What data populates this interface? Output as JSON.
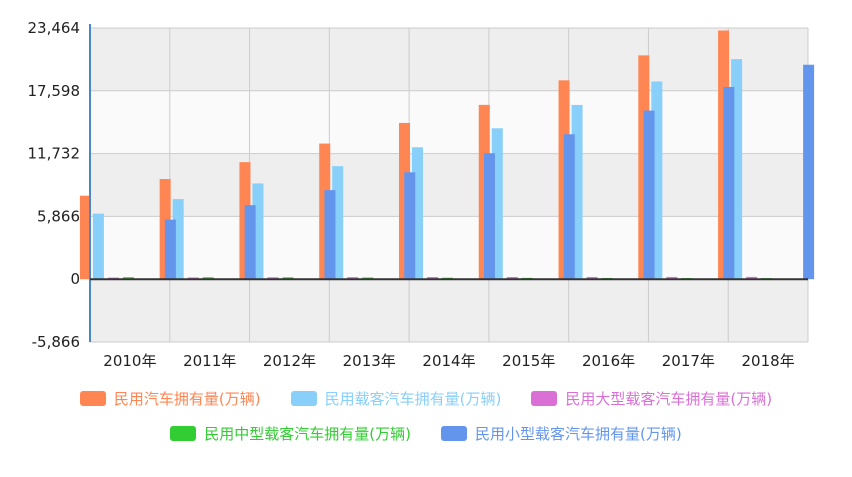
{
  "chart_data": {
    "type": "bar",
    "categories": [
      "2010年",
      "2011年",
      "2012年",
      "2013年",
      "2014年",
      "2015年",
      "2016年",
      "2017年",
      "2018年"
    ],
    "ylim": [
      -5866,
      23464
    ],
    "yticks": [
      "23,464",
      "17,598",
      "11,732",
      "5,866",
      "0",
      "-5,866"
    ],
    "ytick_values": [
      23464,
      17598,
      11732,
      5866,
      0,
      -5866
    ],
    "grid": true,
    "legend_position": "bottom",
    "series": [
      {
        "name": "民用汽车拥有量(万辆)",
        "color": "#FF8552",
        "values": [
          7802,
          9356,
          10933,
          12670,
          14598,
          16284,
          18575,
          20907,
          23231
        ]
      },
      {
        "name": "民用载客汽车拥有量(万辆)",
        "color": "#88CFFA",
        "values": [
          6124,
          7478,
          8943,
          10561,
          12326,
          14099,
          16278,
          18470,
          20555
        ]
      },
      {
        "name": "民用大型载客汽车拥有量(万辆)",
        "color": "#DA70D6",
        "values": [
          151,
          164,
          180,
          195,
          203,
          207,
          210,
          213,
          216
        ]
      },
      {
        "name": "民用中型载客汽车拥有量(万辆)",
        "color": "#32CD32",
        "values": [
          186,
          180,
          175,
          160,
          140,
          125,
          114,
          105,
          100
        ]
      },
      {
        "name": "民用小型载客汽车拥有量(万辆)",
        "color": "#6495ED",
        "values": [
          5560,
          6913,
          8321,
          9987,
          11768,
          13539,
          15752,
          17959,
          20033
        ]
      }
    ]
  }
}
